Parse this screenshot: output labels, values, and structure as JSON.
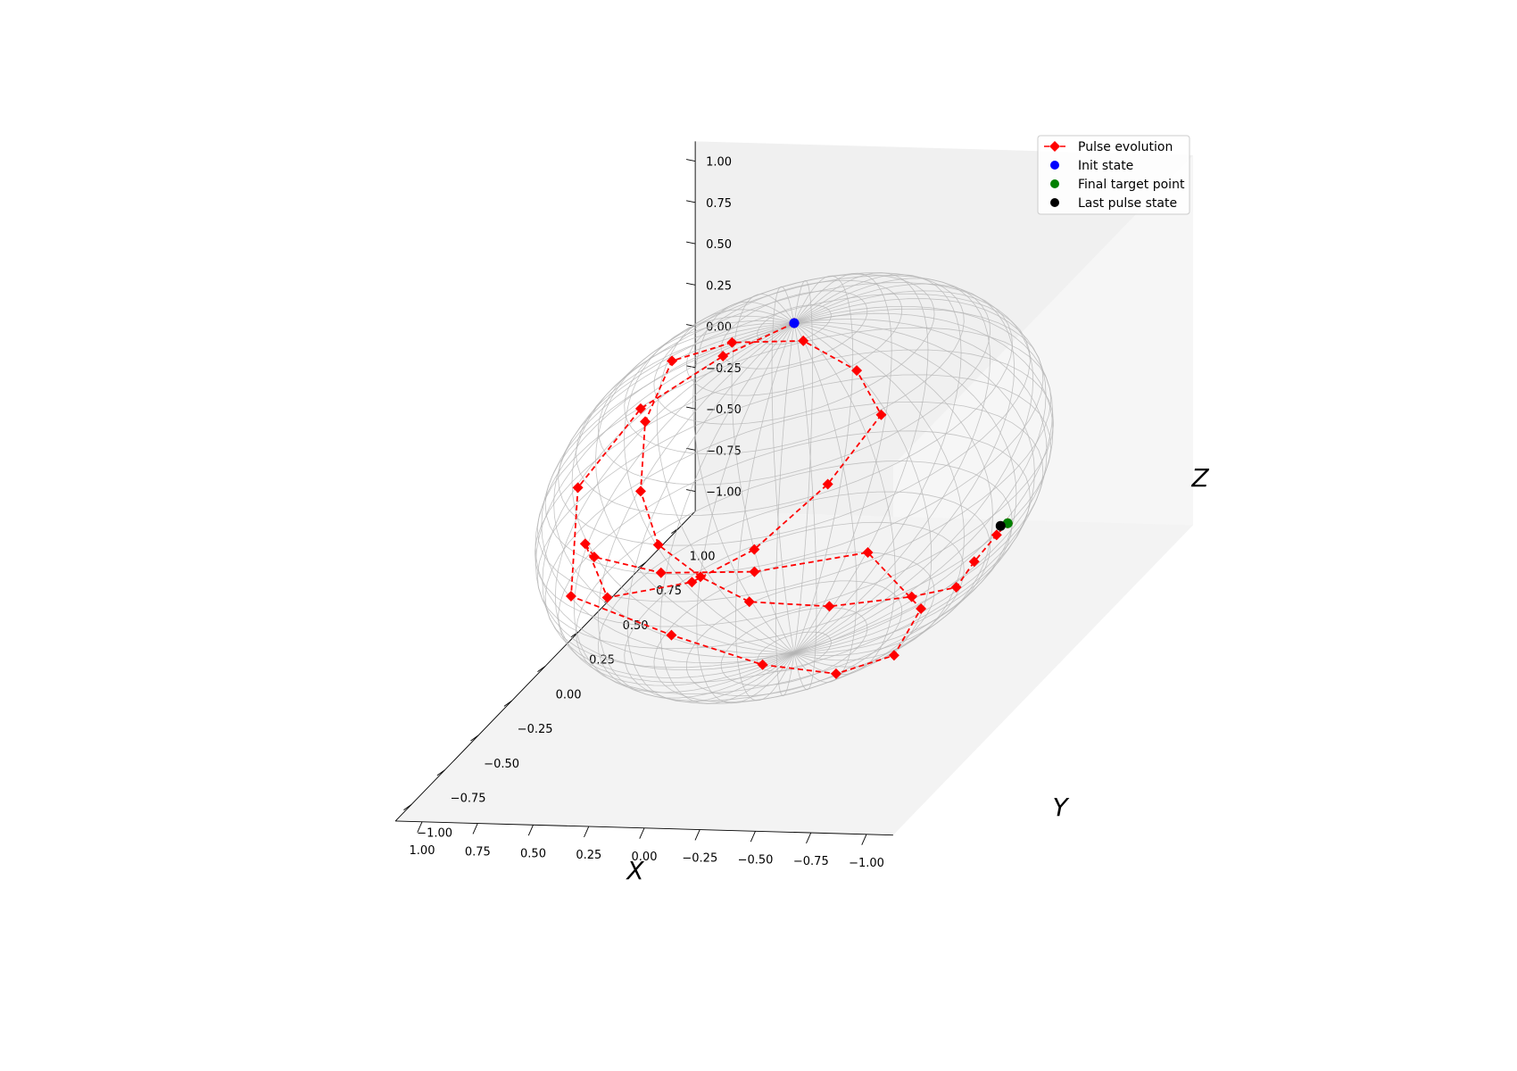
{
  "chart_data": {
    "type": "scatter",
    "title": "",
    "xlabel": "X",
    "ylabel": "Y",
    "zlabel": "Z",
    "xlim": [
      -1.0,
      1.0
    ],
    "ylim": [
      -1.0,
      1.0
    ],
    "zlim": [
      -1.0,
      1.0
    ],
    "x_ticks": [
      "−1.00",
      "−0.75",
      "−0.50",
      "−0.25",
      "0.00",
      "0.25",
      "0.50",
      "0.75",
      "1.00"
    ],
    "y_ticks": [
      "−1.00",
      "−0.75",
      "−0.50",
      "−0.25",
      "0.00",
      "0.25",
      "0.50",
      "0.75",
      "1.00"
    ],
    "z_ticks": [
      "−1.00",
      "−0.75",
      "−0.50",
      "−0.25",
      "0.00",
      "0.25",
      "0.50",
      "0.75",
      "1.00"
    ],
    "grid": false,
    "sphere": {
      "kind": "wireframe",
      "radius": 1.0
    },
    "legend_position": "top-right",
    "series": [
      {
        "name": "Pulse evolution",
        "kind": "line",
        "color": "#ff0000",
        "linestyle": "dashed",
        "marker": "diamond",
        "points": [
          [
            0.0,
            0.0,
            1.0
          ],
          [
            0.2,
            -0.2,
            0.96
          ],
          [
            0.45,
            -0.4,
            0.8
          ],
          [
            0.6,
            -0.62,
            0.5
          ],
          [
            0.45,
            -0.92,
            0.1
          ],
          [
            -0.05,
            -1.0,
            -0.05
          ],
          [
            -0.4,
            -0.9,
            -0.3
          ],
          [
            -0.55,
            -0.6,
            -0.6
          ],
          [
            -0.6,
            -0.25,
            -0.78
          ],
          [
            -0.45,
            0.2,
            -0.88
          ],
          [
            0.0,
            0.55,
            -0.85
          ],
          [
            0.45,
            0.45,
            -0.9
          ],
          [
            0.75,
            0.25,
            -0.75
          ],
          [
            0.9,
            0.0,
            -0.45
          ],
          [
            0.82,
            -0.2,
            -0.2
          ],
          [
            0.6,
            -0.4,
            -0.35
          ],
          [
            0.4,
            -0.1,
            -0.5
          ],
          [
            0.3,
            0.2,
            -0.55
          ],
          [
            0.15,
            0.5,
            -0.4
          ],
          [
            0.0,
            0.65,
            -0.1
          ],
          [
            0.05,
            0.55,
            0.25
          ],
          [
            0.2,
            0.4,
            0.55
          ],
          [
            0.4,
            0.2,
            0.7
          ],
          [
            0.55,
            0.0,
            0.75
          ],
          [
            0.55,
            -0.2,
            0.55
          ],
          [
            0.45,
            -0.4,
            0.3
          ],
          [
            0.25,
            -0.6,
            0.15
          ],
          [
            0.0,
            -0.7,
            0.05
          ],
          [
            -0.25,
            -0.75,
            -0.05
          ],
          [
            -0.55,
            -0.65,
            -0.15
          ],
          [
            -0.8,
            -0.45,
            -0.25
          ],
          [
            -0.85,
            -0.2,
            -0.4
          ],
          [
            -0.75,
            0.1,
            -0.5
          ],
          [
            -0.7,
            0.35,
            -0.55
          ],
          [
            -0.72,
            0.4,
            -0.52
          ]
        ]
      },
      {
        "name": "Init state",
        "kind": "scatter",
        "color": "#0000ff",
        "points": [
          [
            0.0,
            0.0,
            1.0
          ]
        ]
      },
      {
        "name": "Final target point",
        "kind": "scatter",
        "color": "#008000",
        "points": [
          [
            -0.72,
            0.4,
            -0.52
          ]
        ]
      },
      {
        "name": "Last pulse state",
        "kind": "scatter",
        "color": "#000000",
        "points": [
          [
            -0.7,
            0.38,
            -0.52
          ]
        ]
      }
    ]
  }
}
